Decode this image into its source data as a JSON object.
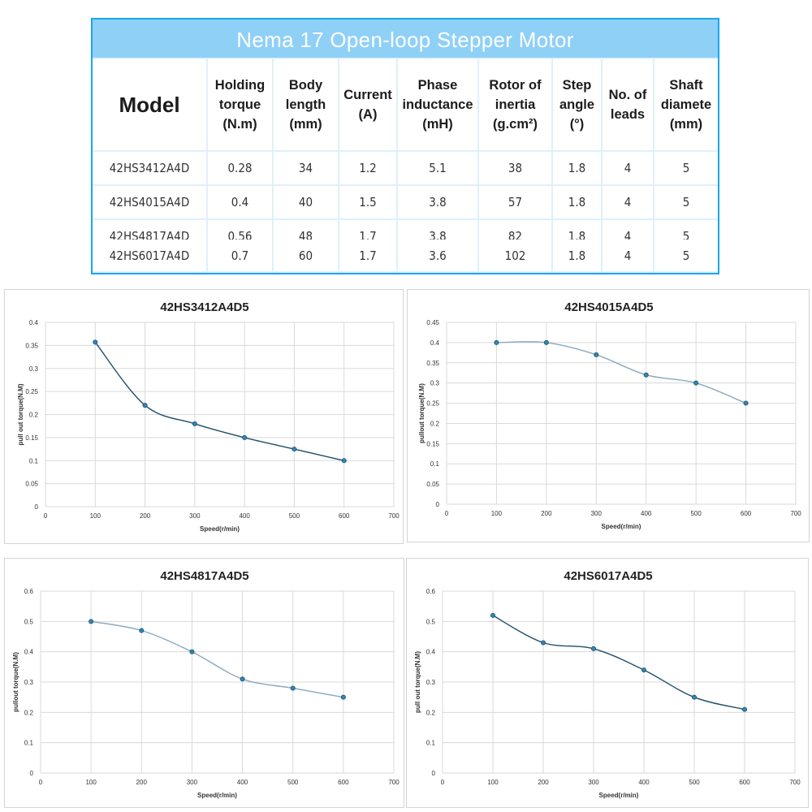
{
  "spec_table": {
    "title": "Nema 17 Open-loop Stepper Motor",
    "headers": [
      "Model",
      "Holding\ntorque\n(N.m)",
      "Body\nlength\n(mm)",
      "Current\n(A)",
      "Phase\ninductance\n(mH)",
      "Rotor of\ninertia\n(g.cm²)",
      "Step\nangle\n(°)",
      "No. of\nleads",
      "Shaft\ndiamete\n(mm)"
    ],
    "rows": [
      [
        "42HS3412A4D",
        "0.28",
        "34",
        "1.2",
        "5.1",
        "38",
        "1.8",
        "4",
        "5"
      ],
      [
        "42HS4015A4D",
        "0.4",
        "40",
        "1.5",
        "3.8",
        "57",
        "1.8",
        "4",
        "5"
      ],
      [
        "42HS4817A4D",
        "0.56",
        "48",
        "1.7",
        "3.8",
        "82",
        "1.8",
        "4",
        "5"
      ],
      [
        "42HS6017A4D",
        "0.7",
        "60",
        "1.7",
        "3.6",
        "102",
        "1.8",
        "4",
        "5"
      ]
    ],
    "colors": {
      "border": "#1aa6ef",
      "title_bg": "#8fd0f7",
      "grid": "#dff0fb"
    }
  },
  "chart_data": [
    {
      "type": "line",
      "title": "42HS3412A4D5",
      "xlabel": "Speed(r/min)",
      "ylabel": "pull out torque(N.M)",
      "x": [
        100,
        200,
        300,
        400,
        500,
        600
      ],
      "series": [
        {
          "values": [
            0.357,
            0.22,
            0.18,
            0.15,
            0.125,
            0.1
          ]
        }
      ],
      "xlim": [
        0,
        700
      ],
      "ylim": [
        0,
        0.4
      ],
      "xticks": [
        "0",
        "100",
        "200",
        "300",
        "400",
        "500",
        "600",
        "700"
      ],
      "yticks": [
        "0",
        "0.05",
        "0.1",
        "0.15",
        "0.2",
        "0.25",
        "0.3",
        "0.35",
        "0.4"
      ],
      "grid": true,
      "line_color": "#1f4e6b"
    },
    {
      "type": "line",
      "title": "42HS4015A4D5",
      "xlabel": "Speed(r/min)",
      "ylabel": "pullout torque(N.M)",
      "x": [
        100,
        200,
        300,
        400,
        500,
        600
      ],
      "series": [
        {
          "values": [
            0.4,
            0.4,
            0.37,
            0.32,
            0.3,
            0.25
          ]
        }
      ],
      "xlim": [
        0,
        700
      ],
      "ylim": [
        0,
        0.45
      ],
      "xticks": [
        "0",
        "100",
        "200",
        "300",
        "400",
        "500",
        "600",
        "700"
      ],
      "yticks": [
        "0",
        "0.05",
        "0.1",
        "0.15",
        "0.2",
        "0.25",
        "0.3",
        "0.35",
        "0.4",
        "0.45"
      ],
      "grid": true,
      "line_color": "#8aa8bd"
    },
    {
      "type": "line",
      "title": "42HS4817A4D5",
      "xlabel": "Speed(r/min)",
      "ylabel": "pullout torque(N.M)",
      "x": [
        100,
        200,
        300,
        400,
        500,
        600
      ],
      "series": [
        {
          "values": [
            0.5,
            0.47,
            0.4,
            0.31,
            0.28,
            0.25
          ]
        }
      ],
      "xlim": [
        0,
        700
      ],
      "ylim": [
        0,
        0.6
      ],
      "xticks": [
        "0",
        "100",
        "200",
        "300",
        "400",
        "500",
        "600",
        "700"
      ],
      "yticks": [
        "0",
        "0.1",
        "0.2",
        "0.3",
        "0.4",
        "0.5",
        "0.6"
      ],
      "grid": true,
      "line_color": "#8aa8bd"
    },
    {
      "type": "line",
      "title": "42HS6017A4D5",
      "xlabel": "Speed(r/min)",
      "ylabel": "pull out torque(N.M)",
      "x": [
        100,
        200,
        300,
        400,
        500,
        600
      ],
      "series": [
        {
          "values": [
            0.52,
            0.43,
            0.41,
            0.34,
            0.25,
            0.21
          ]
        }
      ],
      "xlim": [
        0,
        700
      ],
      "ylim": [
        0,
        0.6
      ],
      "xticks": [
        "0",
        "100",
        "200",
        "300",
        "400",
        "500",
        "600",
        "700"
      ],
      "yticks": [
        "0",
        "0.1",
        "0.2",
        "0.3",
        "0.4",
        "0.5",
        "0.6"
      ],
      "grid": true,
      "line_color": "#1f4e6b"
    }
  ]
}
